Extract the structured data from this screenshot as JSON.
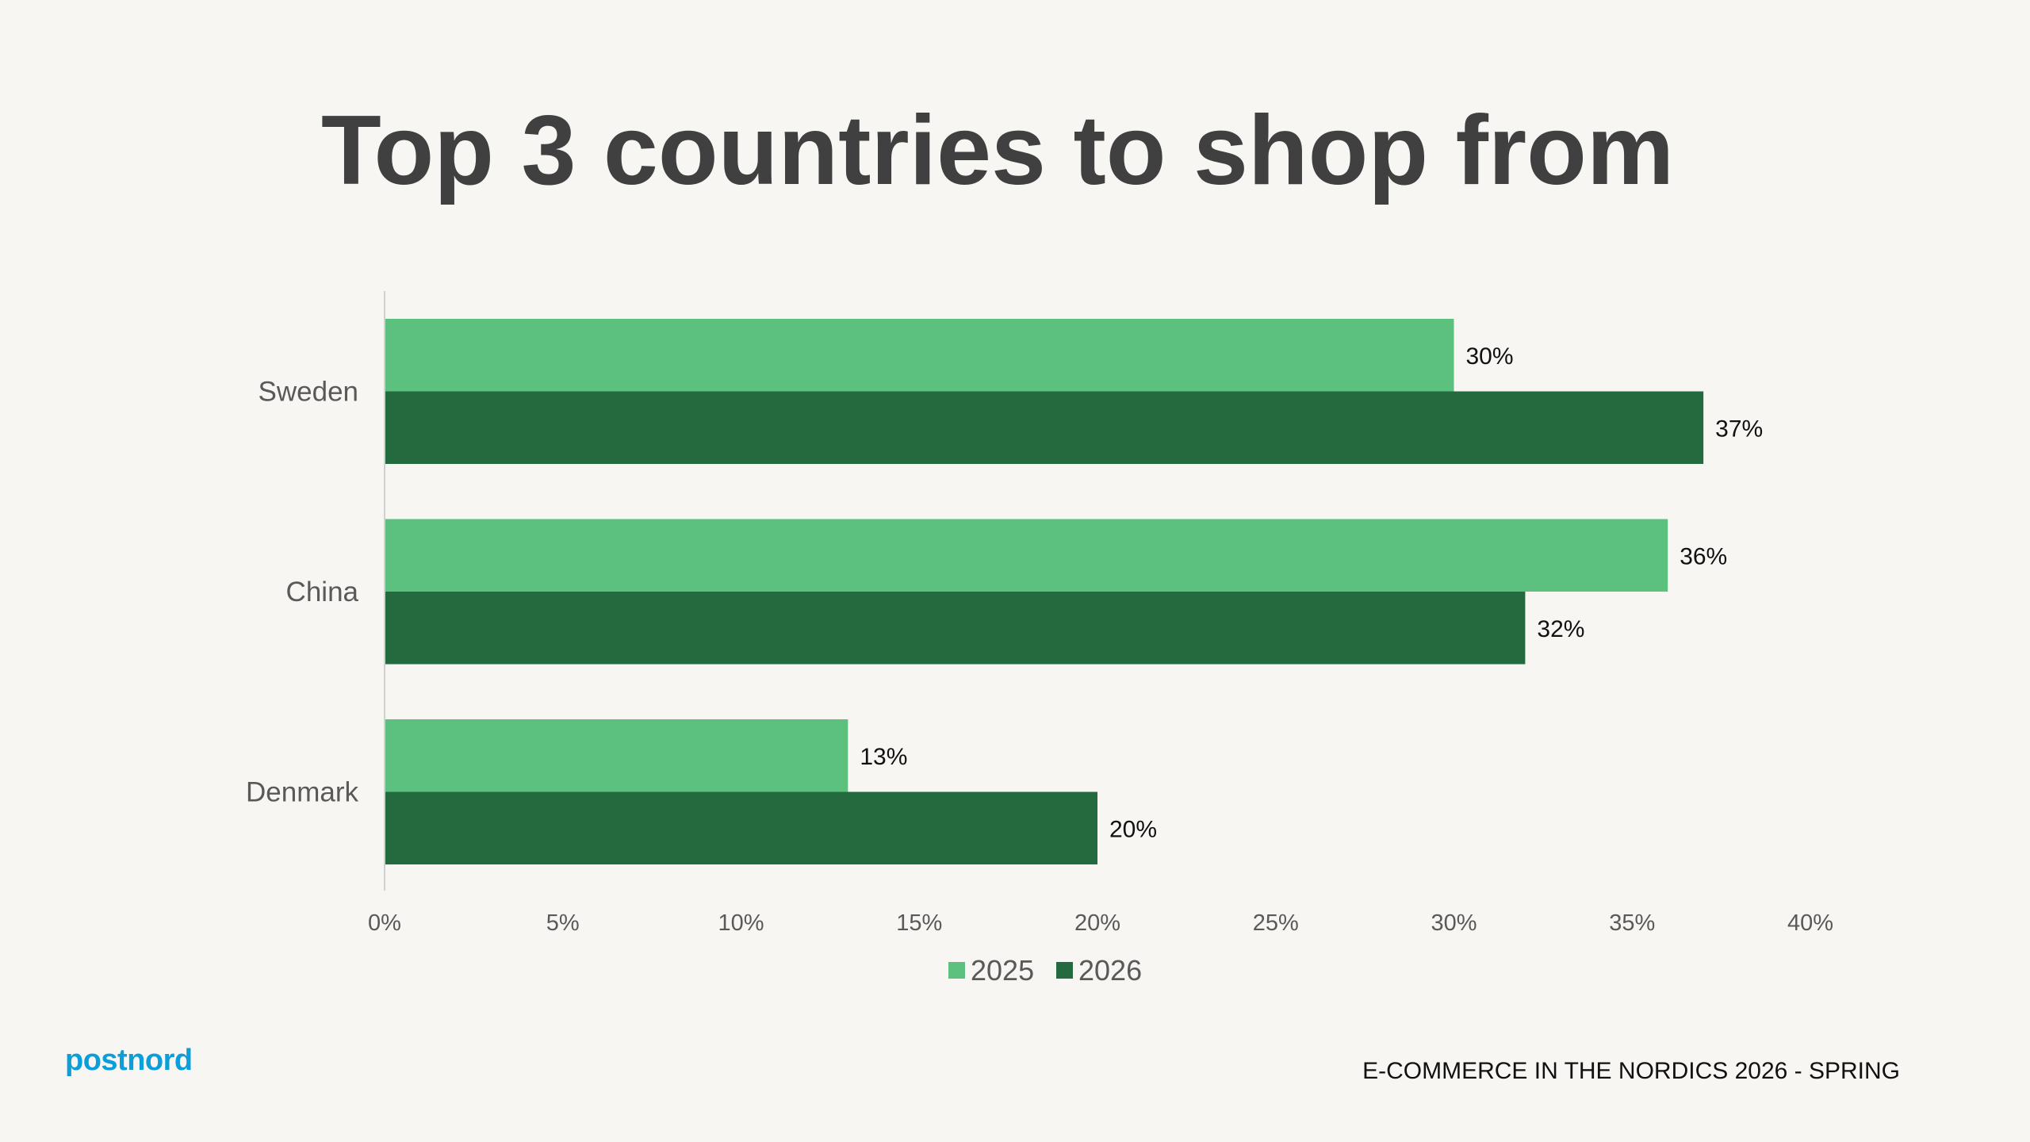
{
  "page": {
    "title": "Top 3 countries to shop from",
    "brand": "postnord",
    "footer": "E-COMMERCE IN THE NORDICS 2026 - SPRING"
  },
  "colors": {
    "background": "#f7f6f3",
    "title": "#404040",
    "series_2025": "#5cc17f",
    "series_2026": "#246a3f",
    "brand": "#0b9ed8"
  },
  "chart_data": {
    "type": "bar",
    "orientation": "horizontal",
    "title": "",
    "xlabel": "",
    "ylabel": "",
    "categories": [
      "Sweden",
      "China",
      "Denmark"
    ],
    "series": [
      {
        "name": "2025",
        "values": [
          30,
          36,
          13
        ],
        "labels": [
          "30%",
          "36%",
          "13%"
        ]
      },
      {
        "name": "2026",
        "values": [
          37,
          32,
          20
        ],
        "labels": [
          "37%",
          "32%",
          "20%"
        ]
      }
    ],
    "xlim": [
      0,
      40
    ],
    "x_ticks": [
      0,
      5,
      10,
      15,
      20,
      25,
      30,
      35,
      40
    ],
    "x_tick_labels": [
      "0%",
      "5%",
      "10%",
      "15%",
      "20%",
      "25%",
      "30%",
      "35%",
      "40%"
    ],
    "grid": false,
    "legend_position": "bottom"
  }
}
